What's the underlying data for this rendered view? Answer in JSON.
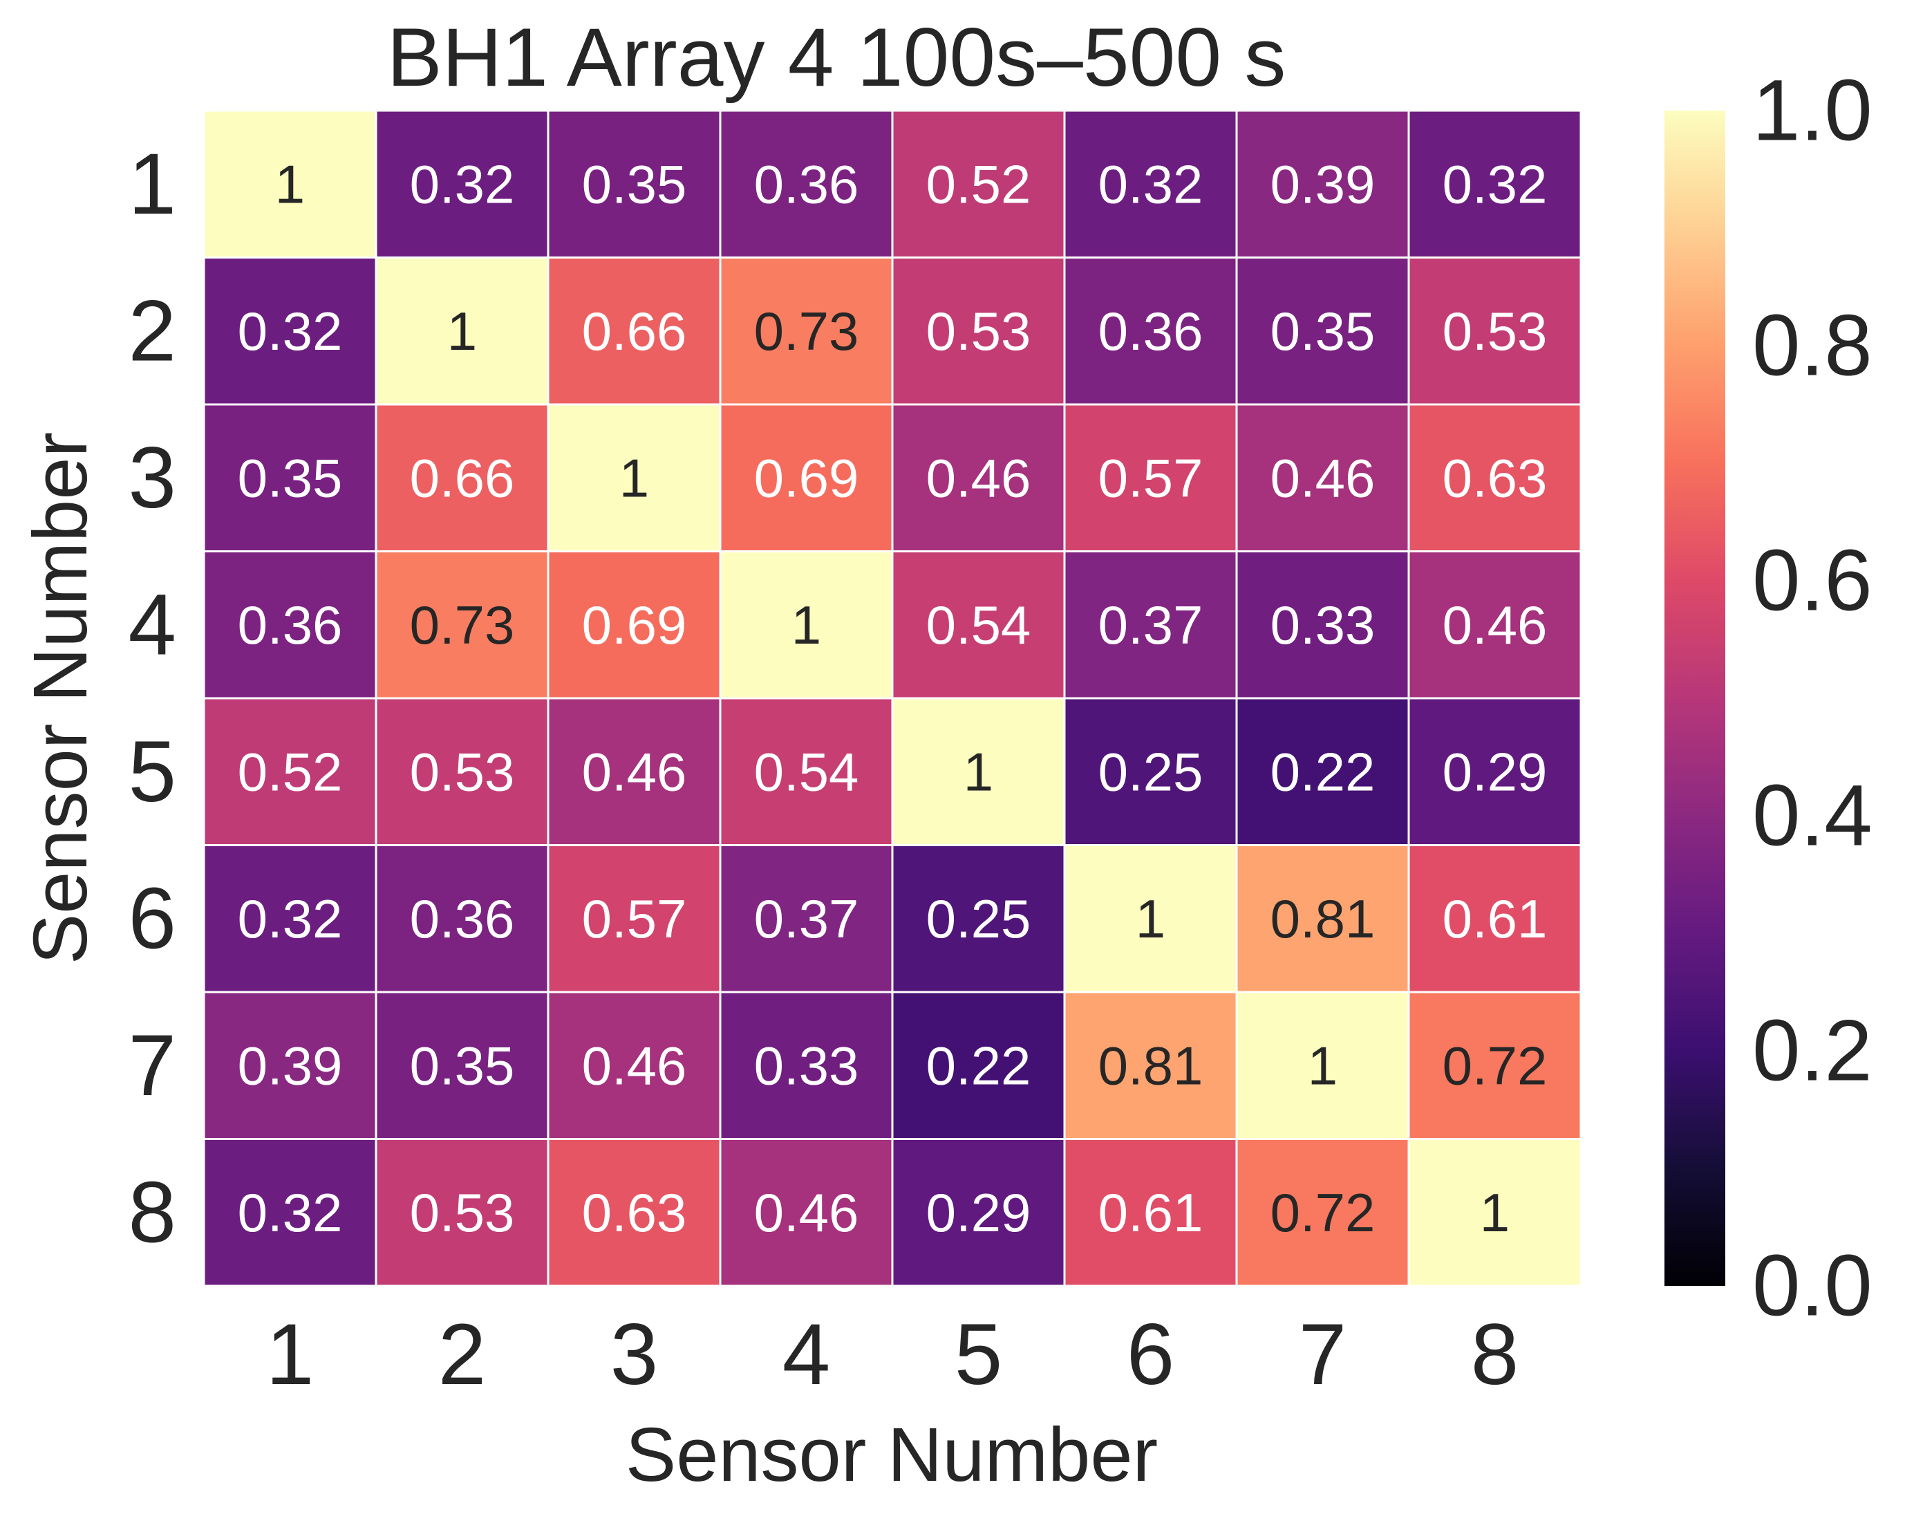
{
  "chart_data": {
    "type": "heatmap",
    "title": "BH1 Array 4 100s–500 s",
    "xlabel": "Sensor Number",
    "ylabel": "Sensor Number",
    "x_categories": [
      "1",
      "2",
      "3",
      "4",
      "5",
      "6",
      "7",
      "8"
    ],
    "y_categories": [
      "1",
      "2",
      "3",
      "4",
      "5",
      "6",
      "7",
      "8"
    ],
    "annotation_labels": [
      [
        "1",
        "0.32",
        "0.35",
        "0.36",
        "0.52",
        "0.32",
        "0.39",
        "0.32"
      ],
      [
        "0.32",
        "1",
        "0.66",
        "0.73",
        "0.53",
        "0.36",
        "0.35",
        "0.53"
      ],
      [
        "0.35",
        "0.66",
        "1",
        "0.69",
        "0.46",
        "0.57",
        "0.46",
        "0.63"
      ],
      [
        "0.36",
        "0.73",
        "0.69",
        "1",
        "0.54",
        "0.37",
        "0.33",
        "0.46"
      ],
      [
        "0.52",
        "0.53",
        "0.46",
        "0.54",
        "1",
        "0.25",
        "0.22",
        "0.29"
      ],
      [
        "0.32",
        "0.36",
        "0.57",
        "0.37",
        "0.25",
        "1",
        "0.81",
        "0.61"
      ],
      [
        "0.39",
        "0.35",
        "0.46",
        "0.33",
        "0.22",
        "0.81",
        "1",
        "0.72"
      ],
      [
        "0.32",
        "0.53",
        "0.63",
        "0.46",
        "0.29",
        "0.61",
        "0.72",
        "1"
      ]
    ],
    "values": [
      [
        1.0,
        0.32,
        0.35,
        0.36,
        0.52,
        0.32,
        0.39,
        0.32
      ],
      [
        0.32,
        1.0,
        0.66,
        0.73,
        0.53,
        0.36,
        0.35,
        0.53
      ],
      [
        0.35,
        0.66,
        1.0,
        0.69,
        0.46,
        0.57,
        0.46,
        0.63
      ],
      [
        0.36,
        0.73,
        0.69,
        1.0,
        0.54,
        0.37,
        0.33,
        0.46
      ],
      [
        0.52,
        0.53,
        0.46,
        0.54,
        1.0,
        0.25,
        0.22,
        0.29
      ],
      [
        0.32,
        0.36,
        0.57,
        0.37,
        0.25,
        1.0,
        0.81,
        0.61
      ],
      [
        0.39,
        0.35,
        0.46,
        0.33,
        0.22,
        0.81,
        1.0,
        0.72
      ],
      [
        0.32,
        0.53,
        0.63,
        0.46,
        0.29,
        0.61,
        0.72,
        1.0
      ]
    ],
    "colormap": "magma",
    "vmin": 0.0,
    "vmax": 1.0,
    "colorbar": {
      "position": "right",
      "ticks": [
        0.0,
        0.2,
        0.4,
        0.6,
        0.8,
        1.0
      ],
      "tick_labels": [
        "0.0",
        "0.2",
        "0.4",
        "0.6",
        "0.8",
        "1.0"
      ]
    },
    "annotation_colors": {
      "on_dark": "#ffffff",
      "on_light": "#262626"
    },
    "cell_separator_color": "#ffffff",
    "grid": false
  }
}
